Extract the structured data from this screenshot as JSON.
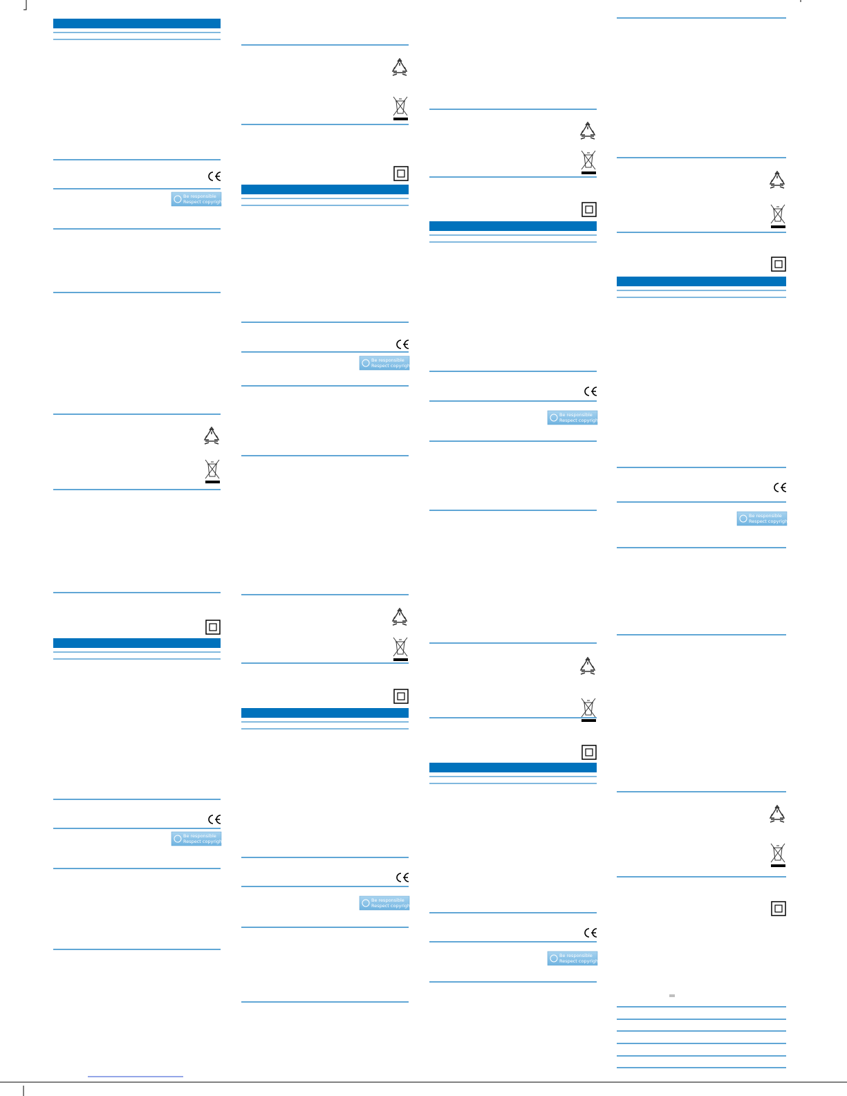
{
  "badge": {
    "line1": "Be responsible",
    "line2": "Respect copyrights"
  }
}
